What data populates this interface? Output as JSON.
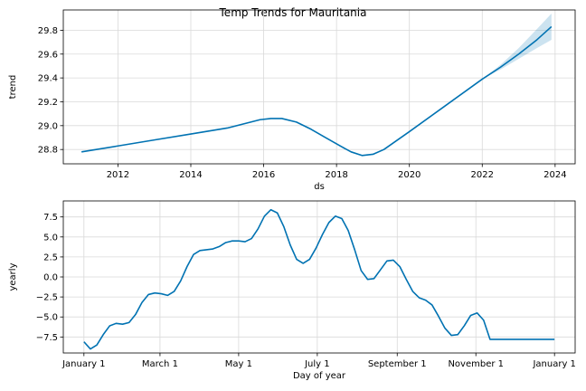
{
  "figure": {
    "title": "Temp Trends for Mauritania"
  },
  "colors": {
    "line": "#0072B2",
    "band": "#0072B2",
    "grid": "#d9d9d9",
    "axis": "#000000"
  },
  "chart_data": [
    {
      "type": "line",
      "name": "trend",
      "xlabel": "ds",
      "ylabel": "trend",
      "xlim": [
        2010.5,
        2024.55
      ],
      "ylim": [
        28.68,
        29.97
      ],
      "xticks": [
        2012,
        2014,
        2016,
        2018,
        2020,
        2022,
        2024
      ],
      "xtick_labels": [
        "2012",
        "2014",
        "2016",
        "2018",
        "2020",
        "2022",
        "2024"
      ],
      "yticks": [
        28.8,
        29.0,
        29.2,
        29.4,
        29.6,
        29.8
      ],
      "ytick_labels": [
        "28.8",
        "29.0",
        "29.2",
        "29.4",
        "29.6",
        "29.8"
      ],
      "grid": true,
      "x": [
        2011.0,
        2012.0,
        2013.0,
        2014.0,
        2015.0,
        2015.9,
        2016.2,
        2016.5,
        2016.9,
        2017.3,
        2017.7,
        2018.1,
        2018.4,
        2018.7,
        2019.0,
        2019.3,
        2020.0,
        2021.0,
        2022.0,
        2022.5,
        2023.0,
        2023.5,
        2023.9
      ],
      "values": [
        28.78,
        28.83,
        28.88,
        28.93,
        28.98,
        29.05,
        29.06,
        29.06,
        29.03,
        28.97,
        28.9,
        28.83,
        28.78,
        28.75,
        28.76,
        28.8,
        28.95,
        29.17,
        29.39,
        29.49,
        29.6,
        29.72,
        29.83
      ],
      "band": {
        "x": [
          2022.0,
          2022.5,
          2023.0,
          2023.5,
          2023.9
        ],
        "lower": [
          29.39,
          29.47,
          29.56,
          29.65,
          29.72
        ],
        "upper": [
          29.39,
          29.51,
          29.65,
          29.81,
          29.94
        ]
      }
    },
    {
      "type": "line",
      "name": "yearly",
      "xlabel": "Day of year",
      "ylabel": "yearly",
      "xlim": [
        -16,
        381
      ],
      "ylim": [
        -9.5,
        9.5
      ],
      "xticks": [
        0,
        59,
        120,
        181,
        243,
        304,
        365
      ],
      "xtick_labels": [
        "January 1",
        "March 1",
        "May 1",
        "July 1",
        "September 1",
        "November 1",
        "January 1"
      ],
      "yticks": [
        -7.5,
        -5.0,
        -2.5,
        0.0,
        2.5,
        5.0,
        7.5
      ],
      "ytick_labels": [
        "−7.5",
        "−5.0",
        "−2.5",
        "0.0",
        "2.5",
        "5.0",
        "7.5"
      ],
      "grid": true,
      "x": [
        0,
        5,
        10,
        15,
        20,
        25,
        30,
        35,
        40,
        45,
        50,
        55,
        60,
        65,
        70,
        75,
        80,
        85,
        90,
        95,
        100,
        105,
        110,
        115,
        120,
        125,
        130,
        135,
        140,
        145,
        150,
        155,
        160,
        165,
        170,
        175,
        180,
        185,
        190,
        195,
        200,
        205,
        210,
        215,
        220,
        225,
        230,
        235,
        240,
        245,
        250,
        255,
        260,
        265,
        270,
        275,
        280,
        285,
        290,
        295,
        300,
        305,
        310,
        315,
        320,
        325,
        330,
        335,
        340,
        345,
        350,
        355,
        360,
        365
      ],
      "values": [
        -8.1,
        -9.0,
        -8.5,
        -7.2,
        -6.1,
        -5.8,
        -5.9,
        -5.7,
        -4.7,
        -3.2,
        -2.2,
        -2.0,
        -2.1,
        -2.3,
        -1.8,
        -0.5,
        1.3,
        2.8,
        3.3,
        3.4,
        3.5,
        3.8,
        4.3,
        4.5,
        4.5,
        4.4,
        4.8,
        6.0,
        7.6,
        8.4,
        8.0,
        6.3,
        4.0,
        2.2,
        1.7,
        2.2,
        3.6,
        5.3,
        6.8,
        7.6,
        7.3,
        5.8,
        3.4,
        0.8,
        -0.3,
        -0.2,
        0.9,
        2.0,
        2.1,
        1.3,
        -0.3,
        -1.8,
        -2.6,
        -2.9,
        -3.5,
        -4.9,
        -6.4,
        -7.3,
        -7.2,
        -6.1,
        -4.8,
        -4.5,
        -5.4,
        -7.8,
        -7.8,
        -7.8,
        -7.8,
        -7.8,
        -7.8,
        -7.8,
        -7.8,
        -7.8,
        -7.8,
        -7.8
      ]
    }
  ]
}
